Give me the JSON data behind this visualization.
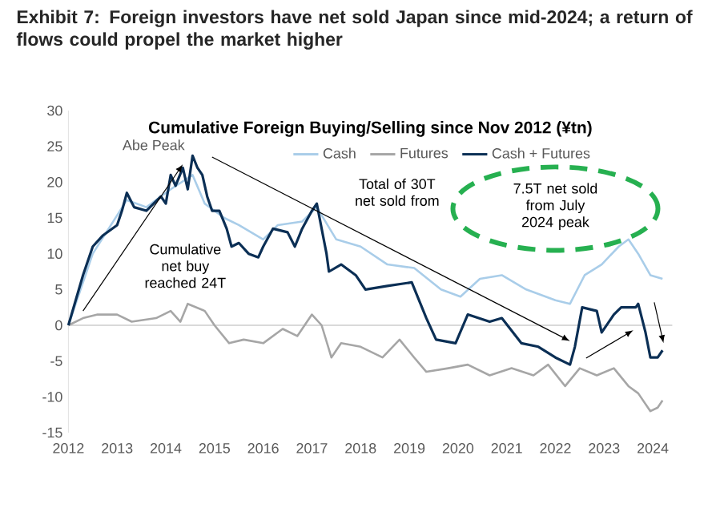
{
  "chart_data": {
    "type": "line",
    "title": "Exhibit 7: Foreign investors have net sold Japan since mid-2024; a return of flows could propel the market higher",
    "subtitle": "Cumulative Foreign Buying/Selling since Nov 2012 (¥tn)",
    "xlim": [
      2012,
      2024.4
    ],
    "xticks": [
      2012,
      2013,
      2014,
      2015,
      2016,
      2017,
      2018,
      2019,
      2020,
      2021,
      2022,
      2023,
      2024
    ],
    "ylim": [
      -15,
      30
    ],
    "yticks": [
      -15,
      -10,
      -5,
      0,
      5,
      10,
      15,
      20,
      25,
      30
    ],
    "legend": "top",
    "grid": false,
    "marker": "none",
    "line_style": "solid",
    "ref_lines": [
      {
        "axis": "y",
        "value": 0,
        "color": "#d9d9d9"
      }
    ],
    "annotations": [
      "Abe Peak",
      "Cumulative net buy reached 24T",
      "Total of 30T net sold from",
      "7.5T net sold from July 2024 peak"
    ],
    "series": [
      {
        "name": "Cash",
        "color": "#a9cde9",
        "x": [
          2012,
          2012.5,
          2013.2,
          2013.6,
          2014.1,
          2014.55,
          2014.8,
          2015.2,
          2015.5,
          2016.0,
          2016.3,
          2016.8,
          2017.1,
          2017.5,
          2018.0,
          2018.55,
          2019.1,
          2019.65,
          2020.05,
          2020.45,
          2020.9,
          2021.4,
          2022.0,
          2022.3,
          2022.6,
          2022.95,
          2023.3,
          2023.5,
          2023.7,
          2023.95,
          2024.2
        ],
        "values": [
          0,
          10,
          17.5,
          16.5,
          19,
          21,
          17,
          15,
          14,
          12,
          14,
          14.5,
          16.5,
          12,
          11,
          8.5,
          8,
          5,
          4,
          6.5,
          7,
          5,
          3.5,
          3,
          7,
          8.5,
          11,
          12,
          10,
          7,
          6.5
        ]
      },
      {
        "name": "Futures",
        "color": "#a6a6a6",
        "x": [
          2012,
          2012.3,
          2012.6,
          2013.0,
          2013.3,
          2013.8,
          2014.1,
          2014.3,
          2014.45,
          2014.8,
          2015.0,
          2015.3,
          2015.6,
          2016.0,
          2016.4,
          2016.7,
          2017.0,
          2017.2,
          2017.4,
          2017.6,
          2018.0,
          2018.45,
          2018.8,
          2019.1,
          2019.35,
          2019.8,
          2020.2,
          2020.65,
          2021.1,
          2021.55,
          2021.85,
          2022.2,
          2022.5,
          2022.85,
          2023.2,
          2023.5,
          2023.7,
          2023.95,
          2024.1,
          2024.2
        ],
        "values": [
          0,
          1,
          1.5,
          1.5,
          0.5,
          1,
          2,
          0.5,
          3,
          2,
          0,
          -2.5,
          -2,
          -2.5,
          -0.5,
          -1.5,
          1.5,
          0,
          -4.5,
          -2.5,
          -3,
          -4.5,
          -2,
          -4.5,
          -6.5,
          -6,
          -5.5,
          -7,
          -6,
          -7,
          -5.5,
          -8.5,
          -6,
          -7,
          -6,
          -8.5,
          -9.5,
          -12,
          -11.5,
          -10.5
        ]
      },
      {
        "name": "Cash + Futures",
        "color": "#0b2f55",
        "x": [
          2012,
          2012.3,
          2012.5,
          2012.7,
          2013.0,
          2013.1,
          2013.2,
          2013.35,
          2013.6,
          2013.9,
          2014.0,
          2014.1,
          2014.2,
          2014.35,
          2014.45,
          2014.55,
          2014.65,
          2014.75,
          2014.85,
          2014.95,
          2015.1,
          2015.25,
          2015.35,
          2015.5,
          2015.7,
          2015.9,
          2016.0,
          2016.2,
          2016.5,
          2016.65,
          2016.8,
          2017.0,
          2017.1,
          2017.3,
          2017.35,
          2017.6,
          2017.9,
          2018.1,
          2018.55,
          2019.05,
          2019.35,
          2019.55,
          2019.95,
          2020.2,
          2020.65,
          2020.9,
          2021.3,
          2021.65,
          2022.0,
          2022.3,
          2022.4,
          2022.55,
          2022.85,
          2022.95,
          2023.2,
          2023.35,
          2023.65,
          2023.7,
          2023.85,
          2023.95,
          2024.1,
          2024.2
        ],
        "values": [
          0,
          7,
          11,
          12.5,
          14,
          16,
          18.5,
          16.5,
          16,
          18,
          17,
          21,
          19.5,
          22,
          19,
          23.7,
          22,
          21,
          18,
          16,
          16,
          13.5,
          11,
          11.5,
          10,
          9.5,
          11,
          13.5,
          13,
          11,
          13.5,
          16,
          17,
          10,
          7.5,
          8.5,
          7,
          5,
          5.5,
          6,
          1,
          -2,
          -2.5,
          1.5,
          0.5,
          1,
          -2.5,
          -3,
          -4.5,
          -5.5,
          -3,
          2.5,
          2,
          -1,
          1.5,
          2.5,
          2.5,
          3,
          -1,
          -4.5,
          -4.5,
          -3.5
        ]
      }
    ]
  }
}
